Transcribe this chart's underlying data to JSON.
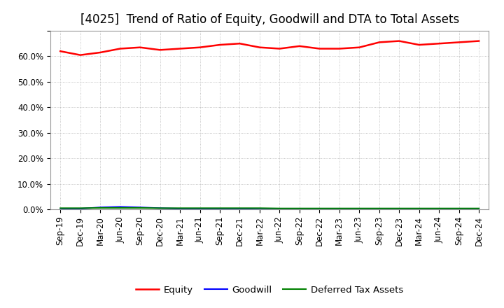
{
  "title": "[4025]  Trend of Ratio of Equity, Goodwill and DTA to Total Assets",
  "x_labels": [
    "Sep-19",
    "Dec-19",
    "Mar-20",
    "Jun-20",
    "Sep-20",
    "Dec-20",
    "Mar-21",
    "Jun-21",
    "Sep-21",
    "Dec-21",
    "Mar-22",
    "Jun-22",
    "Sep-22",
    "Dec-22",
    "Mar-23",
    "Jun-23",
    "Sep-23",
    "Dec-23",
    "Mar-24",
    "Jun-24",
    "Sep-24",
    "Dec-24"
  ],
  "equity": [
    62.0,
    60.5,
    61.5,
    63.0,
    63.5,
    62.5,
    63.0,
    63.5,
    64.5,
    65.0,
    63.5,
    63.0,
    64.0,
    63.0,
    63.0,
    63.5,
    65.5,
    66.0,
    64.5,
    65.0,
    65.5,
    66.0
  ],
  "goodwill": [
    0.0,
    0.3,
    0.8,
    1.0,
    0.8,
    0.5,
    0.3,
    0.2,
    0.1,
    0.1,
    0.0,
    0.0,
    0.0,
    0.0,
    0.0,
    0.0,
    0.0,
    0.0,
    0.0,
    0.0,
    0.0,
    0.0
  ],
  "dta": [
    0.5,
    0.5,
    0.6,
    0.6,
    0.6,
    0.5,
    0.5,
    0.5,
    0.5,
    0.5,
    0.5,
    0.4,
    0.4,
    0.4,
    0.4,
    0.4,
    0.4,
    0.4,
    0.4,
    0.4,
    0.4,
    0.4
  ],
  "equity_color": "#ff0000",
  "goodwill_color": "#0000ff",
  "dta_color": "#008000",
  "ylim": [
    0,
    70
  ],
  "yticks": [
    0,
    10,
    20,
    30,
    40,
    50,
    60,
    70
  ],
  "ytick_labels": [
    "0.0%",
    "10.0%",
    "20.0%",
    "30.0%",
    "40.0%",
    "50.0%",
    "60.0%",
    ""
  ],
  "bg_color": "#ffffff",
  "plot_bg_color": "#ffffff",
  "grid_color": "#aaaaaa",
  "title_fontsize": 12,
  "tick_fontsize": 8.5,
  "legend_labels": [
    "Equity",
    "Goodwill",
    "Deferred Tax Assets"
  ]
}
